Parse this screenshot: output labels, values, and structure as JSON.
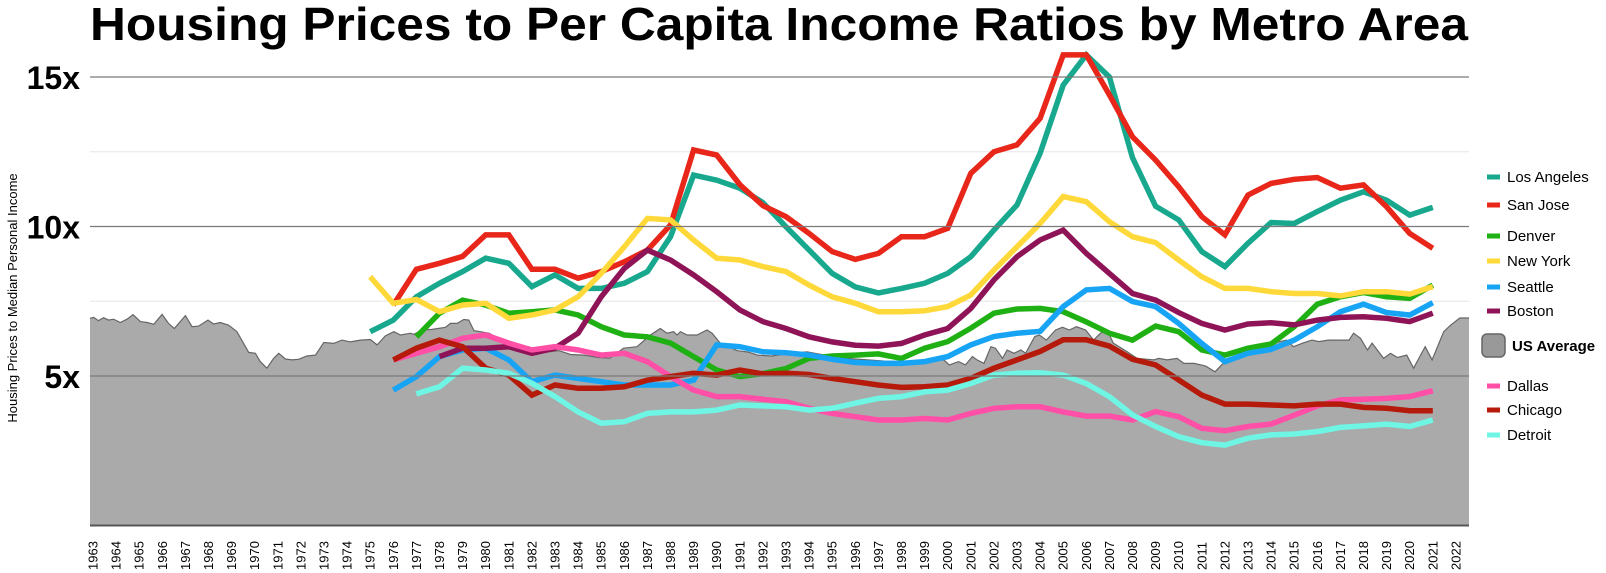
{
  "chart_data": {
    "type": "line",
    "title": "Housing Prices to Per Capita Income Ratios by Metro Area",
    "ylabel": "Housing Prices to Median Personal Income",
    "xlabel": "",
    "ylim": [
      0,
      17.5
    ],
    "xlim": [
      1963,
      2022
    ],
    "y_ticks": [
      {
        "value": 5,
        "label": "5x"
      },
      {
        "value": 10,
        "label": "10x"
      },
      {
        "value": 15,
        "label": "15x"
      }
    ],
    "minor_gridlines": [
      2.5,
      7.5,
      12.5
    ],
    "x_tick_labels": [
      "1963",
      "1964",
      "1965",
      "1966",
      "1967",
      "1968",
      "1969",
      "1970",
      "1971",
      "1972",
      "1973",
      "1974",
      "1975",
      "1976",
      "1977",
      "1978",
      "1979",
      "1980",
      "1981",
      "1982",
      "1983",
      "1984",
      "1985",
      "1986",
      "1987",
      "1988",
      "1989",
      "1990",
      "1991",
      "1992",
      "1993",
      "1994",
      "1995",
      "1996",
      "1997",
      "1998",
      "1999",
      "2000",
      "2001",
      "2002",
      "2003",
      "2004",
      "2005",
      "2006",
      "2007",
      "2008",
      "2009",
      "2010",
      "2011",
      "2012",
      "2013",
      "2014",
      "2015",
      "2016",
      "2017",
      "2018",
      "2019",
      "2020",
      "2021",
      "2022"
    ],
    "grid": true,
    "legend_position": "right",
    "area_series": {
      "name": "US Average",
      "color": "#aaaaaa",
      "points": [
        [
          1963.0,
          6.93
        ],
        [
          1963.16,
          6.96
        ],
        [
          1963.37,
          6.85
        ],
        [
          1963.59,
          6.95
        ],
        [
          1963.8,
          6.87
        ],
        [
          1964.02,
          6.9
        ],
        [
          1964.31,
          6.79
        ],
        [
          1964.6,
          6.9
        ],
        [
          1964.86,
          7.05
        ],
        [
          1965.18,
          6.82
        ],
        [
          1965.47,
          6.79
        ],
        [
          1965.76,
          6.73
        ],
        [
          1966.12,
          7.06
        ],
        [
          1966.4,
          6.76
        ],
        [
          1966.65,
          6.59
        ],
        [
          1967.13,
          7.02
        ],
        [
          1967.42,
          6.65
        ],
        [
          1967.7,
          6.67
        ],
        [
          1968.11,
          6.87
        ],
        [
          1968.35,
          6.74
        ],
        [
          1968.64,
          6.79
        ],
        [
          1969.0,
          6.7
        ],
        [
          1969.36,
          6.48
        ],
        [
          1969.65,
          6.09
        ],
        [
          1969.87,
          5.79
        ],
        [
          1970.16,
          5.76
        ],
        [
          1970.37,
          5.48
        ],
        [
          1970.66,
          5.26
        ],
        [
          1970.95,
          5.59
        ],
        [
          1971.17,
          5.76
        ],
        [
          1971.46,
          5.57
        ],
        [
          1971.75,
          5.54
        ],
        [
          1972.03,
          5.56
        ],
        [
          1972.39,
          5.67
        ],
        [
          1972.76,
          5.7
        ],
        [
          1973.12,
          6.12
        ],
        [
          1973.55,
          6.09
        ],
        [
          1973.91,
          6.2
        ],
        [
          1974.27,
          6.14
        ],
        [
          1974.71,
          6.2
        ],
        [
          1975.14,
          6.22
        ],
        [
          1975.43,
          6.04
        ],
        [
          1975.79,
          6.34
        ],
        [
          1976.15,
          6.48
        ],
        [
          1976.44,
          6.37
        ],
        [
          1976.88,
          6.43
        ],
        [
          1977.01,
          6.39
        ],
        [
          1977.38,
          6.54
        ],
        [
          1977.81,
          6.56
        ],
        [
          1978.39,
          6.63
        ],
        [
          1978.6,
          6.76
        ],
        [
          1978.89,
          6.76
        ],
        [
          1979.18,
          6.89
        ],
        [
          1979.4,
          6.87
        ],
        [
          1979.62,
          6.52
        ],
        [
          1980.27,
          6.43
        ],
        [
          1980.84,
          6.2
        ],
        [
          1981.13,
          6.09
        ],
        [
          1981.42,
          6.0
        ],
        [
          1981.71,
          5.89
        ],
        [
          1982.2,
          5.75
        ],
        [
          1982.7,
          5.8
        ],
        [
          1983.3,
          5.85
        ],
        [
          1983.8,
          5.72
        ],
        [
          1984.4,
          5.7
        ],
        [
          1985.0,
          5.62
        ],
        [
          1985.5,
          5.6
        ],
        [
          1986.1,
          5.93
        ],
        [
          1986.68,
          5.98
        ],
        [
          1987.26,
          6.37
        ],
        [
          1987.69,
          6.59
        ],
        [
          1987.98,
          6.43
        ],
        [
          1988.27,
          6.48
        ],
        [
          1988.41,
          6.37
        ],
        [
          1988.56,
          6.48
        ],
        [
          1988.85,
          6.37
        ],
        [
          1989.28,
          6.37
        ],
        [
          1989.71,
          6.54
        ],
        [
          1989.93,
          6.43
        ],
        [
          1990.29,
          6.09
        ],
        [
          1990.6,
          6.0
        ],
        [
          1991.0,
          5.85
        ],
        [
          1991.5,
          5.8
        ],
        [
          1991.9,
          5.7
        ],
        [
          1992.5,
          5.67
        ],
        [
          1993.2,
          5.75
        ],
        [
          1994.04,
          5.81
        ],
        [
          1994.8,
          5.7
        ],
        [
          1995.6,
          5.6
        ],
        [
          1996.5,
          5.55
        ],
        [
          1997.4,
          5.5
        ],
        [
          1998.3,
          5.48
        ],
        [
          1999.2,
          5.5
        ],
        [
          1999.96,
          5.54
        ],
        [
          2000.2,
          5.37
        ],
        [
          2000.6,
          5.48
        ],
        [
          2000.9,
          5.37
        ],
        [
          2001.2,
          5.65
        ],
        [
          2001.4,
          5.54
        ],
        [
          2001.7,
          5.42
        ],
        [
          2002.0,
          5.98
        ],
        [
          2002.2,
          5.93
        ],
        [
          2002.5,
          5.59
        ],
        [
          2002.7,
          5.87
        ],
        [
          2003.0,
          5.76
        ],
        [
          2003.3,
          5.87
        ],
        [
          2003.5,
          5.76
        ],
        [
          2003.9,
          6.32
        ],
        [
          2004.1,
          6.37
        ],
        [
          2004.4,
          6.2
        ],
        [
          2004.8,
          6.54
        ],
        [
          2005.1,
          6.63
        ],
        [
          2005.4,
          6.54
        ],
        [
          2005.7,
          6.65
        ],
        [
          2006.1,
          6.54
        ],
        [
          2006.45,
          6.2
        ],
        [
          2006.74,
          6.43
        ],
        [
          2007.03,
          6.54
        ],
        [
          2007.3,
          6.1
        ],
        [
          2007.9,
          5.81
        ],
        [
          2008.33,
          5.59
        ],
        [
          2009.05,
          5.54
        ],
        [
          2009.27,
          5.59
        ],
        [
          2009.63,
          5.54
        ],
        [
          2010.06,
          5.59
        ],
        [
          2010.35,
          5.42
        ],
        [
          2010.8,
          5.42
        ],
        [
          2011.3,
          5.33
        ],
        [
          2011.7,
          5.14
        ],
        [
          2012.2,
          5.54
        ],
        [
          2012.6,
          5.54
        ],
        [
          2012.9,
          5.87
        ],
        [
          2013.6,
          5.98
        ],
        [
          2014.2,
          6.1
        ],
        [
          2014.8,
          6.2
        ],
        [
          2015.1,
          5.98
        ],
        [
          2015.5,
          6.1
        ],
        [
          2015.9,
          6.2
        ],
        [
          2016.2,
          6.15
        ],
        [
          2016.6,
          6.2
        ],
        [
          2017.1,
          6.2
        ],
        [
          2017.5,
          6.2
        ],
        [
          2017.7,
          6.43
        ],
        [
          2018.0,
          6.26
        ],
        [
          2018.3,
          5.87
        ],
        [
          2018.5,
          6.1
        ],
        [
          2019.0,
          5.59
        ],
        [
          2019.3,
          5.76
        ],
        [
          2019.6,
          5.62
        ],
        [
          2020.0,
          5.7
        ],
        [
          2020.3,
          5.26
        ],
        [
          2020.6,
          5.7
        ],
        [
          2020.8,
          5.98
        ],
        [
          2021.1,
          5.54
        ],
        [
          2021.6,
          6.48
        ],
        [
          2021.9,
          6.7
        ],
        [
          2022.3,
          6.94
        ],
        [
          2022.6,
          6.94
        ]
      ]
    },
    "series": [
      {
        "name": "Los Angeles",
        "color": "#17a88e",
        "start_year": 1975,
        "values": [
          6.48,
          6.87,
          7.65,
          8.1,
          8.49,
          8.94,
          8.77,
          7.99,
          8.38,
          7.93,
          7.93,
          8.1,
          8.49,
          9.66,
          11.72,
          11.55,
          11.28,
          10.8,
          9.99,
          9.21,
          8.43,
          7.98,
          7.78,
          7.93,
          8.1,
          8.43,
          8.99,
          9.88,
          10.72,
          12.45,
          14.73,
          15.74,
          15.0,
          12.3,
          10.68,
          10.22,
          9.16,
          8.66,
          9.44,
          10.13,
          10.1,
          10.5,
          10.88,
          11.16,
          10.88,
          10.38,
          10.64
        ]
      },
      {
        "name": "San Jose",
        "color": "#e8261a",
        "start_year": 1976,
        "values": [
          7.37,
          8.57,
          8.77,
          9.0,
          9.72,
          9.72,
          8.57,
          8.57,
          8.27,
          8.49,
          8.82,
          9.21,
          10.05,
          12.56,
          12.39,
          11.4,
          10.7,
          10.33,
          9.77,
          9.16,
          8.9,
          9.1,
          9.66,
          9.66,
          9.94,
          11.78,
          12.5,
          12.73,
          13.62,
          15.74,
          15.74,
          14.4,
          13.0,
          12.22,
          11.33,
          10.33,
          9.72,
          11.05,
          11.44,
          11.58,
          11.64,
          11.28,
          11.39,
          10.66,
          9.77,
          9.27
        ]
      },
      {
        "name": "Denver",
        "color": "#1fb014",
        "start_year": 1977,
        "values": [
          6.31,
          7.1,
          7.54,
          7.37,
          7.1,
          7.15,
          7.21,
          7.04,
          6.65,
          6.37,
          6.31,
          6.1,
          5.65,
          5.2,
          4.98,
          5.08,
          5.25,
          5.59,
          5.67,
          5.7,
          5.74,
          5.59,
          5.93,
          6.15,
          6.6,
          7.1,
          7.24,
          7.26,
          7.15,
          6.81,
          6.43,
          6.2,
          6.67,
          6.48,
          5.87,
          5.7,
          5.93,
          6.07,
          6.65,
          7.4,
          7.65,
          7.79,
          7.65,
          7.6,
          8.04
        ]
      },
      {
        "name": "New York",
        "color": "#ffd83a",
        "start_year": 1975,
        "values": [
          8.32,
          7.43,
          7.56,
          7.15,
          7.37,
          7.43,
          6.93,
          7.04,
          7.21,
          7.65,
          8.43,
          9.32,
          10.27,
          10.22,
          9.55,
          8.94,
          8.88,
          8.66,
          8.49,
          8.04,
          7.65,
          7.43,
          7.15,
          7.15,
          7.18,
          7.32,
          7.71,
          8.54,
          9.32,
          10.1,
          11.0,
          10.83,
          10.16,
          9.66,
          9.46,
          8.88,
          8.32,
          7.93,
          7.93,
          7.82,
          7.76,
          7.76,
          7.68,
          7.82,
          7.82,
          7.74,
          7.99
        ]
      },
      {
        "name": "Seattle",
        "color": "#18a4f5",
        "start_year": 1976,
        "values": [
          4.53,
          4.98,
          5.65,
          5.87,
          5.93,
          5.54,
          4.81,
          5.03,
          4.92,
          4.81,
          4.7,
          4.7,
          4.7,
          4.86,
          6.04,
          5.98,
          5.81,
          5.78,
          5.7,
          5.56,
          5.45,
          5.42,
          5.42,
          5.48,
          5.65,
          6.04,
          6.32,
          6.43,
          6.49,
          7.32,
          7.88,
          7.93,
          7.49,
          7.32,
          6.76,
          6.09,
          5.48,
          5.76,
          5.89,
          6.2,
          6.65,
          7.15,
          7.4,
          7.12,
          7.04,
          7.45
        ]
      },
      {
        "name": "Boston",
        "color": "#8f1457",
        "start_year": 1978,
        "values": [
          5.65,
          5.93,
          5.93,
          5.98,
          5.76,
          5.93,
          6.43,
          7.65,
          8.6,
          9.21,
          8.88,
          8.38,
          7.82,
          7.21,
          6.82,
          6.59,
          6.31,
          6.14,
          6.03,
          6.0,
          6.09,
          6.37,
          6.59,
          7.26,
          8.21,
          8.99,
          9.55,
          9.88,
          9.1,
          8.43,
          7.76,
          7.54,
          7.12,
          6.76,
          6.54,
          6.74,
          6.78,
          6.71,
          6.87,
          6.96,
          6.98,
          6.93,
          6.82,
          7.1
        ]
      },
      {
        "name": "Dallas",
        "color": "#ff4fa7",
        "start_year": 1976,
        "values": [
          5.54,
          5.76,
          5.98,
          6.26,
          6.37,
          6.1,
          5.87,
          5.98,
          5.87,
          5.7,
          5.76,
          5.48,
          4.98,
          4.53,
          4.31,
          4.31,
          4.22,
          4.14,
          3.92,
          3.75,
          3.64,
          3.53,
          3.53,
          3.58,
          3.53,
          3.75,
          3.92,
          3.97,
          3.97,
          3.8,
          3.66,
          3.66,
          3.53,
          3.81,
          3.64,
          3.25,
          3.17,
          3.31,
          3.39,
          3.69,
          4.0,
          4.2,
          4.22,
          4.25,
          4.31,
          4.51
        ]
      },
      {
        "name": "Chicago",
        "color": "#b51a0b",
        "start_year": 1976,
        "values": [
          5.54,
          5.93,
          6.2,
          5.98,
          5.26,
          5.03,
          4.36,
          4.7,
          4.59,
          4.59,
          4.64,
          4.86,
          4.98,
          5.09,
          5.03,
          5.2,
          5.07,
          5.09,
          5.05,
          4.92,
          4.81,
          4.7,
          4.62,
          4.64,
          4.7,
          4.92,
          5.26,
          5.54,
          5.82,
          6.21,
          6.21,
          6.0,
          5.56,
          5.37,
          4.87,
          4.36,
          4.06,
          4.06,
          4.03,
          4.0,
          4.06,
          4.06,
          3.95,
          3.92,
          3.84,
          3.84
        ]
      },
      {
        "name": "Detroit",
        "color": "#6ff5e4",
        "start_year": 1977,
        "values": [
          4.4,
          4.64,
          5.26,
          5.2,
          5.09,
          4.76,
          4.31,
          3.8,
          3.42,
          3.47,
          3.75,
          3.8,
          3.8,
          3.86,
          4.03,
          4.0,
          3.97,
          3.86,
          3.92,
          4.09,
          4.25,
          4.31,
          4.47,
          4.53,
          4.75,
          5.03,
          5.09,
          5.11,
          5.03,
          4.75,
          4.31,
          3.7,
          3.31,
          2.97,
          2.77,
          2.69,
          2.92,
          3.03,
          3.06,
          3.14,
          3.28,
          3.33,
          3.39,
          3.31,
          3.53
        ]
      }
    ],
    "legend": [
      {
        "label": "Los Angeles",
        "kind": "line",
        "color": "#17a88e"
      },
      {
        "label": "San Jose",
        "kind": "line",
        "color": "#e8261a"
      },
      {
        "label": "Denver",
        "kind": "line",
        "color": "#1fb014"
      },
      {
        "label": "New York",
        "kind": "line",
        "color": "#ffd83a"
      },
      {
        "label": "Seattle",
        "kind": "line",
        "color": "#18a4f5"
      },
      {
        "label": "Boston",
        "kind": "line",
        "color": "#8f1457"
      },
      {
        "label": "US Average",
        "kind": "area",
        "color": "#999999"
      },
      {
        "label": "Dallas",
        "kind": "line",
        "color": "#ff4fa7"
      },
      {
        "label": "Chicago",
        "kind": "line",
        "color": "#b51a0b"
      },
      {
        "label": "Detroit",
        "kind": "line",
        "color": "#6ff5e4"
      }
    ]
  }
}
